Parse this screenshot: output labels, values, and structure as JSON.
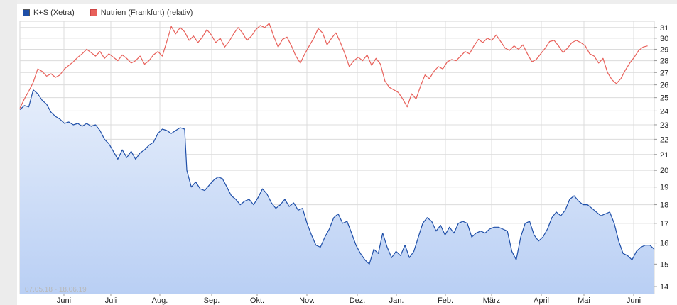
{
  "legend": {
    "items": [
      {
        "label": "K+S (Xetra)",
        "color": "#1f4fa8"
      },
      {
        "label": "Nutrien (Frankfurt) (relativ)",
        "color": "#e8605a"
      }
    ]
  },
  "date_range": "07.05.18 - 18.06.19",
  "chart_data": {
    "type": "line",
    "x_tick_labels": [
      "Juni",
      "Juli",
      "Aug.",
      "Sep.",
      "Okt.",
      "Nov.",
      "Dez.",
      "Jan.",
      "Feb.",
      "März",
      "April",
      "Mai",
      "Juni"
    ],
    "y_tick_labels": [
      14,
      15,
      16,
      17,
      18,
      19,
      20,
      21,
      22,
      23,
      24,
      25,
      26,
      27,
      28,
      29,
      30,
      31
    ],
    "ylim": [
      13.7,
      31.6
    ],
    "y_scale": "log",
    "grid": true,
    "legend_position": "top-left",
    "series": [
      {
        "name": "K+S (Xetra)",
        "color": "#1f4fa8",
        "fill": "area-gradient-blue",
        "points": [
          [
            0,
            24.1
          ],
          [
            2,
            24.4
          ],
          [
            4,
            24.3
          ],
          [
            6,
            25.6
          ],
          [
            8,
            25.3
          ],
          [
            10,
            24.8
          ],
          [
            12,
            24.5
          ],
          [
            14,
            23.9
          ],
          [
            16,
            23.6
          ],
          [
            18,
            23.4
          ],
          [
            20,
            23.1
          ],
          [
            22,
            23.2
          ],
          [
            24,
            23.0
          ],
          [
            26,
            23.1
          ],
          [
            28,
            22.9
          ],
          [
            30,
            23.1
          ],
          [
            32,
            22.9
          ],
          [
            34,
            23.0
          ],
          [
            36,
            22.6
          ],
          [
            38,
            22.0
          ],
          [
            40,
            21.7
          ],
          [
            42,
            21.2
          ],
          [
            44,
            20.7
          ],
          [
            46,
            21.3
          ],
          [
            48,
            20.8
          ],
          [
            50,
            21.2
          ],
          [
            52,
            20.7
          ],
          [
            54,
            21.1
          ],
          [
            56,
            21.3
          ],
          [
            58,
            21.6
          ],
          [
            60,
            21.8
          ],
          [
            62,
            22.4
          ],
          [
            64,
            22.7
          ],
          [
            66,
            22.6
          ],
          [
            68,
            22.4
          ],
          [
            70,
            22.6
          ],
          [
            72,
            22.8
          ],
          [
            74,
            22.7
          ],
          [
            75,
            20.0
          ],
          [
            77,
            19.0
          ],
          [
            79,
            19.3
          ],
          [
            81,
            18.9
          ],
          [
            83,
            18.8
          ],
          [
            85,
            19.1
          ],
          [
            87,
            19.4
          ],
          [
            89,
            19.6
          ],
          [
            91,
            19.5
          ],
          [
            93,
            19.0
          ],
          [
            95,
            18.5
          ],
          [
            97,
            18.3
          ],
          [
            99,
            18.0
          ],
          [
            101,
            18.2
          ],
          [
            103,
            18.3
          ],
          [
            105,
            18.0
          ],
          [
            107,
            18.4
          ],
          [
            109,
            18.9
          ],
          [
            111,
            18.6
          ],
          [
            113,
            18.1
          ],
          [
            115,
            17.8
          ],
          [
            117,
            18.0
          ],
          [
            119,
            18.3
          ],
          [
            121,
            17.9
          ],
          [
            123,
            18.1
          ],
          [
            125,
            17.7
          ],
          [
            127,
            17.8
          ],
          [
            129,
            17.0
          ],
          [
            131,
            16.4
          ],
          [
            133,
            15.9
          ],
          [
            135,
            15.8
          ],
          [
            137,
            16.3
          ],
          [
            139,
            16.7
          ],
          [
            141,
            17.3
          ],
          [
            143,
            17.5
          ],
          [
            145,
            17.0
          ],
          [
            147,
            17.1
          ],
          [
            149,
            16.5
          ],
          [
            151,
            15.9
          ],
          [
            153,
            15.5
          ],
          [
            155,
            15.2
          ],
          [
            157,
            15.0
          ],
          [
            159,
            15.7
          ],
          [
            161,
            15.5
          ],
          [
            163,
            16.5
          ],
          [
            165,
            15.8
          ],
          [
            167,
            15.3
          ],
          [
            169,
            15.6
          ],
          [
            171,
            15.4
          ],
          [
            173,
            15.9
          ],
          [
            175,
            15.3
          ],
          [
            177,
            15.6
          ],
          [
            179,
            16.3
          ],
          [
            181,
            17.0
          ],
          [
            183,
            17.3
          ],
          [
            185,
            17.1
          ],
          [
            187,
            16.6
          ],
          [
            189,
            16.9
          ],
          [
            191,
            16.4
          ],
          [
            193,
            16.8
          ],
          [
            195,
            16.5
          ],
          [
            197,
            17.0
          ],
          [
            199,
            17.1
          ],
          [
            201,
            17.0
          ],
          [
            203,
            16.3
          ],
          [
            205,
            16.5
          ],
          [
            207,
            16.6
          ],
          [
            209,
            16.5
          ],
          [
            211,
            16.7
          ],
          [
            213,
            16.8
          ],
          [
            215,
            16.8
          ],
          [
            217,
            16.7
          ],
          [
            219,
            16.6
          ],
          [
            221,
            15.6
          ],
          [
            223,
            15.2
          ],
          [
            225,
            16.3
          ],
          [
            227,
            17.0
          ],
          [
            229,
            17.1
          ],
          [
            231,
            16.4
          ],
          [
            233,
            16.1
          ],
          [
            235,
            16.3
          ],
          [
            237,
            16.7
          ],
          [
            239,
            17.3
          ],
          [
            241,
            17.6
          ],
          [
            243,
            17.4
          ],
          [
            245,
            17.7
          ],
          [
            247,
            18.3
          ],
          [
            249,
            18.5
          ],
          [
            251,
            18.2
          ],
          [
            253,
            18.0
          ],
          [
            255,
            18.0
          ],
          [
            257,
            17.8
          ],
          [
            259,
            17.6
          ],
          [
            261,
            17.4
          ],
          [
            263,
            17.5
          ],
          [
            265,
            17.6
          ],
          [
            267,
            17.0
          ],
          [
            269,
            16.1
          ],
          [
            271,
            15.5
          ],
          [
            273,
            15.4
          ],
          [
            275,
            15.2
          ],
          [
            277,
            15.6
          ],
          [
            279,
            15.8
          ],
          [
            281,
            15.9
          ],
          [
            283,
            15.9
          ],
          [
            285,
            15.7
          ]
        ]
      },
      {
        "name": "Nutrien (Frankfurt) (relativ)",
        "color": "#e8605a",
        "fill": "none",
        "points": [
          [
            0,
            24.2
          ],
          [
            2,
            24.9
          ],
          [
            4,
            25.5
          ],
          [
            6,
            26.2
          ],
          [
            8,
            27.3
          ],
          [
            10,
            27.1
          ],
          [
            12,
            26.7
          ],
          [
            14,
            26.9
          ],
          [
            16,
            26.6
          ],
          [
            18,
            26.8
          ],
          [
            20,
            27.3
          ],
          [
            22,
            27.6
          ],
          [
            24,
            27.9
          ],
          [
            26,
            28.3
          ],
          [
            28,
            28.6
          ],
          [
            30,
            29.0
          ],
          [
            32,
            28.7
          ],
          [
            34,
            28.4
          ],
          [
            36,
            28.8
          ],
          [
            38,
            28.2
          ],
          [
            40,
            28.6
          ],
          [
            42,
            28.3
          ],
          [
            44,
            28.0
          ],
          [
            46,
            28.5
          ],
          [
            48,
            28.2
          ],
          [
            50,
            27.8
          ],
          [
            52,
            28.0
          ],
          [
            54,
            28.4
          ],
          [
            56,
            27.7
          ],
          [
            58,
            28.0
          ],
          [
            60,
            28.5
          ],
          [
            62,
            28.8
          ],
          [
            64,
            28.4
          ],
          [
            66,
            29.7
          ],
          [
            68,
            31.1
          ],
          [
            70,
            30.4
          ],
          [
            72,
            31.0
          ],
          [
            74,
            30.6
          ],
          [
            76,
            29.8
          ],
          [
            78,
            30.2
          ],
          [
            80,
            29.6
          ],
          [
            82,
            30.1
          ],
          [
            84,
            30.8
          ],
          [
            86,
            30.3
          ],
          [
            88,
            29.6
          ],
          [
            90,
            30.0
          ],
          [
            92,
            29.2
          ],
          [
            94,
            29.7
          ],
          [
            96,
            30.4
          ],
          [
            98,
            31.0
          ],
          [
            100,
            30.5
          ],
          [
            102,
            29.8
          ],
          [
            104,
            30.2
          ],
          [
            106,
            30.8
          ],
          [
            108,
            31.2
          ],
          [
            110,
            31.0
          ],
          [
            112,
            31.4
          ],
          [
            114,
            30.2
          ],
          [
            116,
            29.2
          ],
          [
            118,
            29.9
          ],
          [
            120,
            30.1
          ],
          [
            122,
            29.3
          ],
          [
            124,
            28.4
          ],
          [
            126,
            27.8
          ],
          [
            128,
            28.6
          ],
          [
            130,
            29.3
          ],
          [
            132,
            30.0
          ],
          [
            134,
            30.9
          ],
          [
            136,
            30.5
          ],
          [
            138,
            29.4
          ],
          [
            140,
            30.0
          ],
          [
            142,
            30.5
          ],
          [
            144,
            29.6
          ],
          [
            146,
            28.6
          ],
          [
            148,
            27.5
          ],
          [
            150,
            28.0
          ],
          [
            152,
            28.3
          ],
          [
            154,
            28.0
          ],
          [
            156,
            28.5
          ],
          [
            158,
            27.6
          ],
          [
            160,
            28.2
          ],
          [
            162,
            27.7
          ],
          [
            164,
            26.3
          ],
          [
            166,
            25.8
          ],
          [
            168,
            25.6
          ],
          [
            170,
            25.4
          ],
          [
            172,
            24.9
          ],
          [
            174,
            24.3
          ],
          [
            176,
            25.3
          ],
          [
            178,
            24.9
          ],
          [
            180,
            25.9
          ],
          [
            182,
            26.8
          ],
          [
            184,
            26.5
          ],
          [
            186,
            27.1
          ],
          [
            188,
            27.5
          ],
          [
            190,
            27.3
          ],
          [
            192,
            27.9
          ],
          [
            194,
            28.1
          ],
          [
            196,
            28.0
          ],
          [
            198,
            28.4
          ],
          [
            200,
            28.8
          ],
          [
            202,
            28.6
          ],
          [
            204,
            29.3
          ],
          [
            206,
            29.9
          ],
          [
            208,
            29.6
          ],
          [
            210,
            30.0
          ],
          [
            212,
            29.8
          ],
          [
            214,
            30.3
          ],
          [
            216,
            29.7
          ],
          [
            218,
            29.1
          ],
          [
            220,
            28.9
          ],
          [
            222,
            29.3
          ],
          [
            224,
            29.0
          ],
          [
            226,
            29.4
          ],
          [
            228,
            28.6
          ],
          [
            230,
            27.9
          ],
          [
            232,
            28.1
          ],
          [
            234,
            28.6
          ],
          [
            236,
            29.1
          ],
          [
            238,
            29.7
          ],
          [
            240,
            29.8
          ],
          [
            242,
            29.3
          ],
          [
            244,
            28.7
          ],
          [
            246,
            29.1
          ],
          [
            248,
            29.6
          ],
          [
            250,
            29.8
          ],
          [
            252,
            29.6
          ],
          [
            254,
            29.3
          ],
          [
            256,
            28.6
          ],
          [
            258,
            28.4
          ],
          [
            260,
            27.8
          ],
          [
            262,
            28.2
          ],
          [
            264,
            27.0
          ],
          [
            266,
            26.4
          ],
          [
            268,
            26.1
          ],
          [
            270,
            26.5
          ],
          [
            272,
            27.2
          ],
          [
            274,
            27.8
          ],
          [
            276,
            28.3
          ],
          [
            278,
            28.9
          ],
          [
            280,
            29.2
          ],
          [
            282,
            29.3
          ]
        ]
      }
    ]
  }
}
